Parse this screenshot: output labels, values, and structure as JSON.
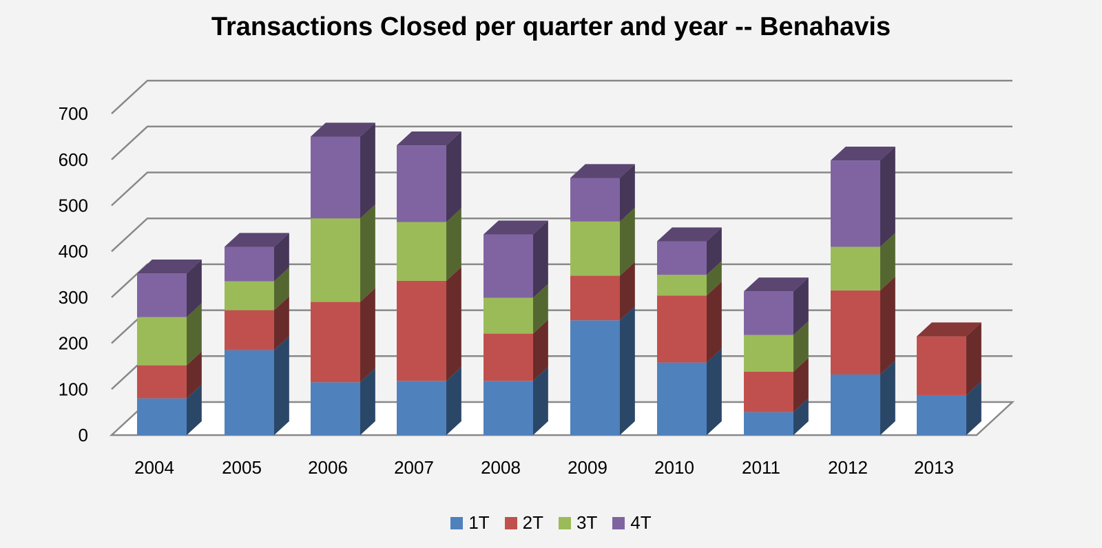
{
  "chart_data": {
    "type": "bar",
    "stacked": true,
    "three_d": true,
    "title": "Transactions Closed per quarter and year -- Benahavis",
    "xlabel": "",
    "ylabel": "",
    "ylim": [
      0,
      700
    ],
    "yticks": [
      0,
      100,
      200,
      300,
      400,
      500,
      600,
      700
    ],
    "grid": true,
    "legend": "bottom",
    "categories": [
      "2004",
      "2005",
      "2006",
      "2007",
      "2008",
      "2009",
      "2010",
      "2011",
      "2012",
      "2013"
    ],
    "series": [
      {
        "name": "1T",
        "color": "#4f81bd",
        "values": [
          80,
          185,
          115,
          118,
          118,
          250,
          158,
          50,
          132,
          87
        ]
      },
      {
        "name": "2T",
        "color": "#c0504d",
        "values": [
          72,
          87,
          175,
          218,
          103,
          97,
          146,
          88,
          183,
          128
        ]
      },
      {
        "name": "3T",
        "color": "#9bbb59",
        "values": [
          105,
          63,
          182,
          128,
          78,
          118,
          45,
          80,
          95,
          0
        ]
      },
      {
        "name": "4T",
        "color": "#8064a2",
        "values": [
          95,
          75,
          178,
          167,
          138,
          95,
          73,
          95,
          188,
          0
        ]
      }
    ]
  }
}
